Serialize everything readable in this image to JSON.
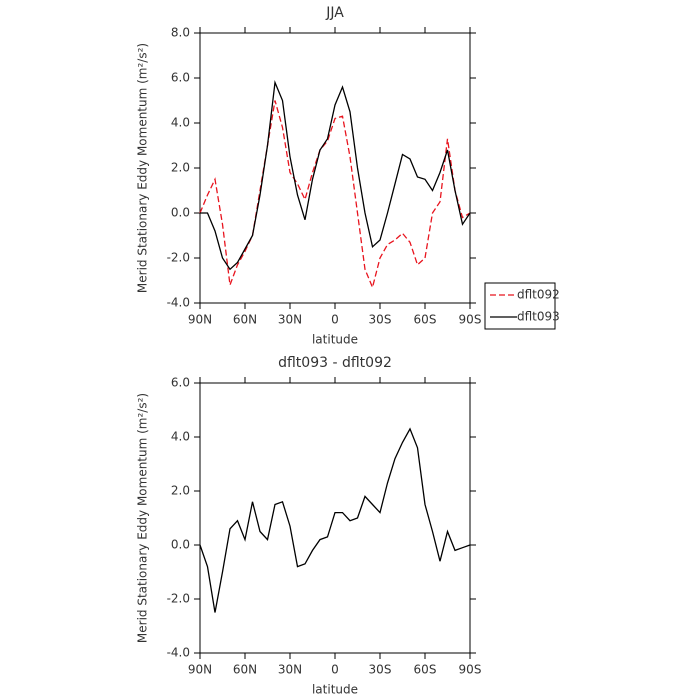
{
  "chart_data": [
    {
      "type": "line",
      "title": "JJA",
      "xlabel": "latitude",
      "ylabel": "Merid Stationary Eddy Momentum (m²/s²)",
      "x": [
        90,
        85,
        80,
        75,
        70,
        65,
        60,
        55,
        50,
        45,
        40,
        35,
        30,
        25,
        20,
        15,
        10,
        5,
        0,
        -5,
        -10,
        -15,
        -20,
        -25,
        -30,
        -35,
        -40,
        -45,
        -50,
        -55,
        -60,
        -65,
        -70,
        -75,
        -80,
        -85,
        -90
      ],
      "xlim": [
        90,
        -90
      ],
      "xticks": [
        {
          "value": 90,
          "label": "90N"
        },
        {
          "value": 60,
          "label": "60N"
        },
        {
          "value": 30,
          "label": "30N"
        },
        0,
        {
          "value": -30,
          "label": "30S"
        },
        {
          "value": -60,
          "label": "60S"
        },
        {
          "value": -90,
          "label": "90S"
        }
      ],
      "ylim": [
        -4,
        8
      ],
      "yticks": [
        {
          "value": -4,
          "label": "-4.0"
        },
        {
          "value": -2,
          "label": "-2.0"
        },
        {
          "value": 0,
          "label": "0.0"
        },
        {
          "value": 2,
          "label": "2.0"
        },
        {
          "value": 4,
          "label": "4.0"
        },
        {
          "value": 6,
          "label": "6.0"
        },
        {
          "value": 8,
          "label": "8.0"
        }
      ],
      "legend": "right",
      "series": [
        {
          "name": "dflt092",
          "color": "#e8141e",
          "linestyle": "dashed",
          "values": [
            0.0,
            0.8,
            1.5,
            -0.5,
            -3.2,
            -2.3,
            -1.7,
            -1.0,
            1.0,
            3.0,
            5.0,
            3.8,
            1.8,
            1.3,
            0.6,
            1.8,
            2.8,
            3.2,
            4.2,
            4.3,
            2.5,
            0.0,
            -2.5,
            -3.3,
            -2.0,
            -1.4,
            -1.2,
            -0.9,
            -1.3,
            -2.3,
            -2.0,
            0.0,
            0.5,
            3.3,
            1.0,
            -0.2,
            0.0
          ]
        },
        {
          "name": "dflt093",
          "color": "#000000",
          "linestyle": "solid",
          "values": [
            0.0,
            0.0,
            -0.8,
            -2.0,
            -2.5,
            -2.2,
            -1.6,
            -1.0,
            0.8,
            3.0,
            5.8,
            5.0,
            2.5,
            0.8,
            -0.3,
            1.5,
            2.8,
            3.3,
            4.8,
            5.6,
            4.5,
            2.0,
            0.0,
            -1.5,
            -1.2,
            0.0,
            1.3,
            2.6,
            2.4,
            1.6,
            1.5,
            1.0,
            1.8,
            2.8,
            1.0,
            -0.5,
            0.0
          ]
        }
      ]
    },
    {
      "type": "line",
      "title": "dflt093 - dflt092",
      "xlabel": "latitude",
      "ylabel": "Merid Stationary Eddy Momentum (m²/s²)",
      "x": [
        90,
        85,
        80,
        75,
        70,
        65,
        60,
        55,
        50,
        45,
        40,
        35,
        30,
        25,
        20,
        15,
        10,
        5,
        0,
        -5,
        -10,
        -15,
        -20,
        -25,
        -30,
        -35,
        -40,
        -45,
        -50,
        -55,
        -60,
        -65,
        -70,
        -75,
        -80,
        -85,
        -90
      ],
      "xlim": [
        90,
        -90
      ],
      "xticks": [
        {
          "value": 90,
          "label": "90N"
        },
        {
          "value": 60,
          "label": "60N"
        },
        {
          "value": 30,
          "label": "30N"
        },
        0,
        {
          "value": -30,
          "label": "30S"
        },
        {
          "value": -60,
          "label": "60S"
        },
        {
          "value": -90,
          "label": "90S"
        }
      ],
      "ylim": [
        -4,
        6
      ],
      "yticks": [
        {
          "value": -4,
          "label": "-4.0"
        },
        {
          "value": -2,
          "label": "-2.0"
        },
        {
          "value": 0,
          "label": "0.0"
        },
        {
          "value": 2,
          "label": "2.0"
        },
        {
          "value": 4,
          "label": "4.0"
        },
        {
          "value": 6,
          "label": "6.0"
        }
      ],
      "series": [
        {
          "color": "#000000",
          "linestyle": "solid",
          "values": [
            0.0,
            -0.8,
            -2.5,
            -1.0,
            0.6,
            0.9,
            0.2,
            1.6,
            0.5,
            0.2,
            1.5,
            1.6,
            0.7,
            -0.8,
            -0.7,
            -0.2,
            0.2,
            0.3,
            1.2,
            1.2,
            0.9,
            1.0,
            1.8,
            1.5,
            1.2,
            2.3,
            3.2,
            3.8,
            4.3,
            3.6,
            1.5,
            0.5,
            -0.6,
            0.5,
            -0.2,
            -0.1,
            0.0
          ]
        }
      ]
    }
  ]
}
